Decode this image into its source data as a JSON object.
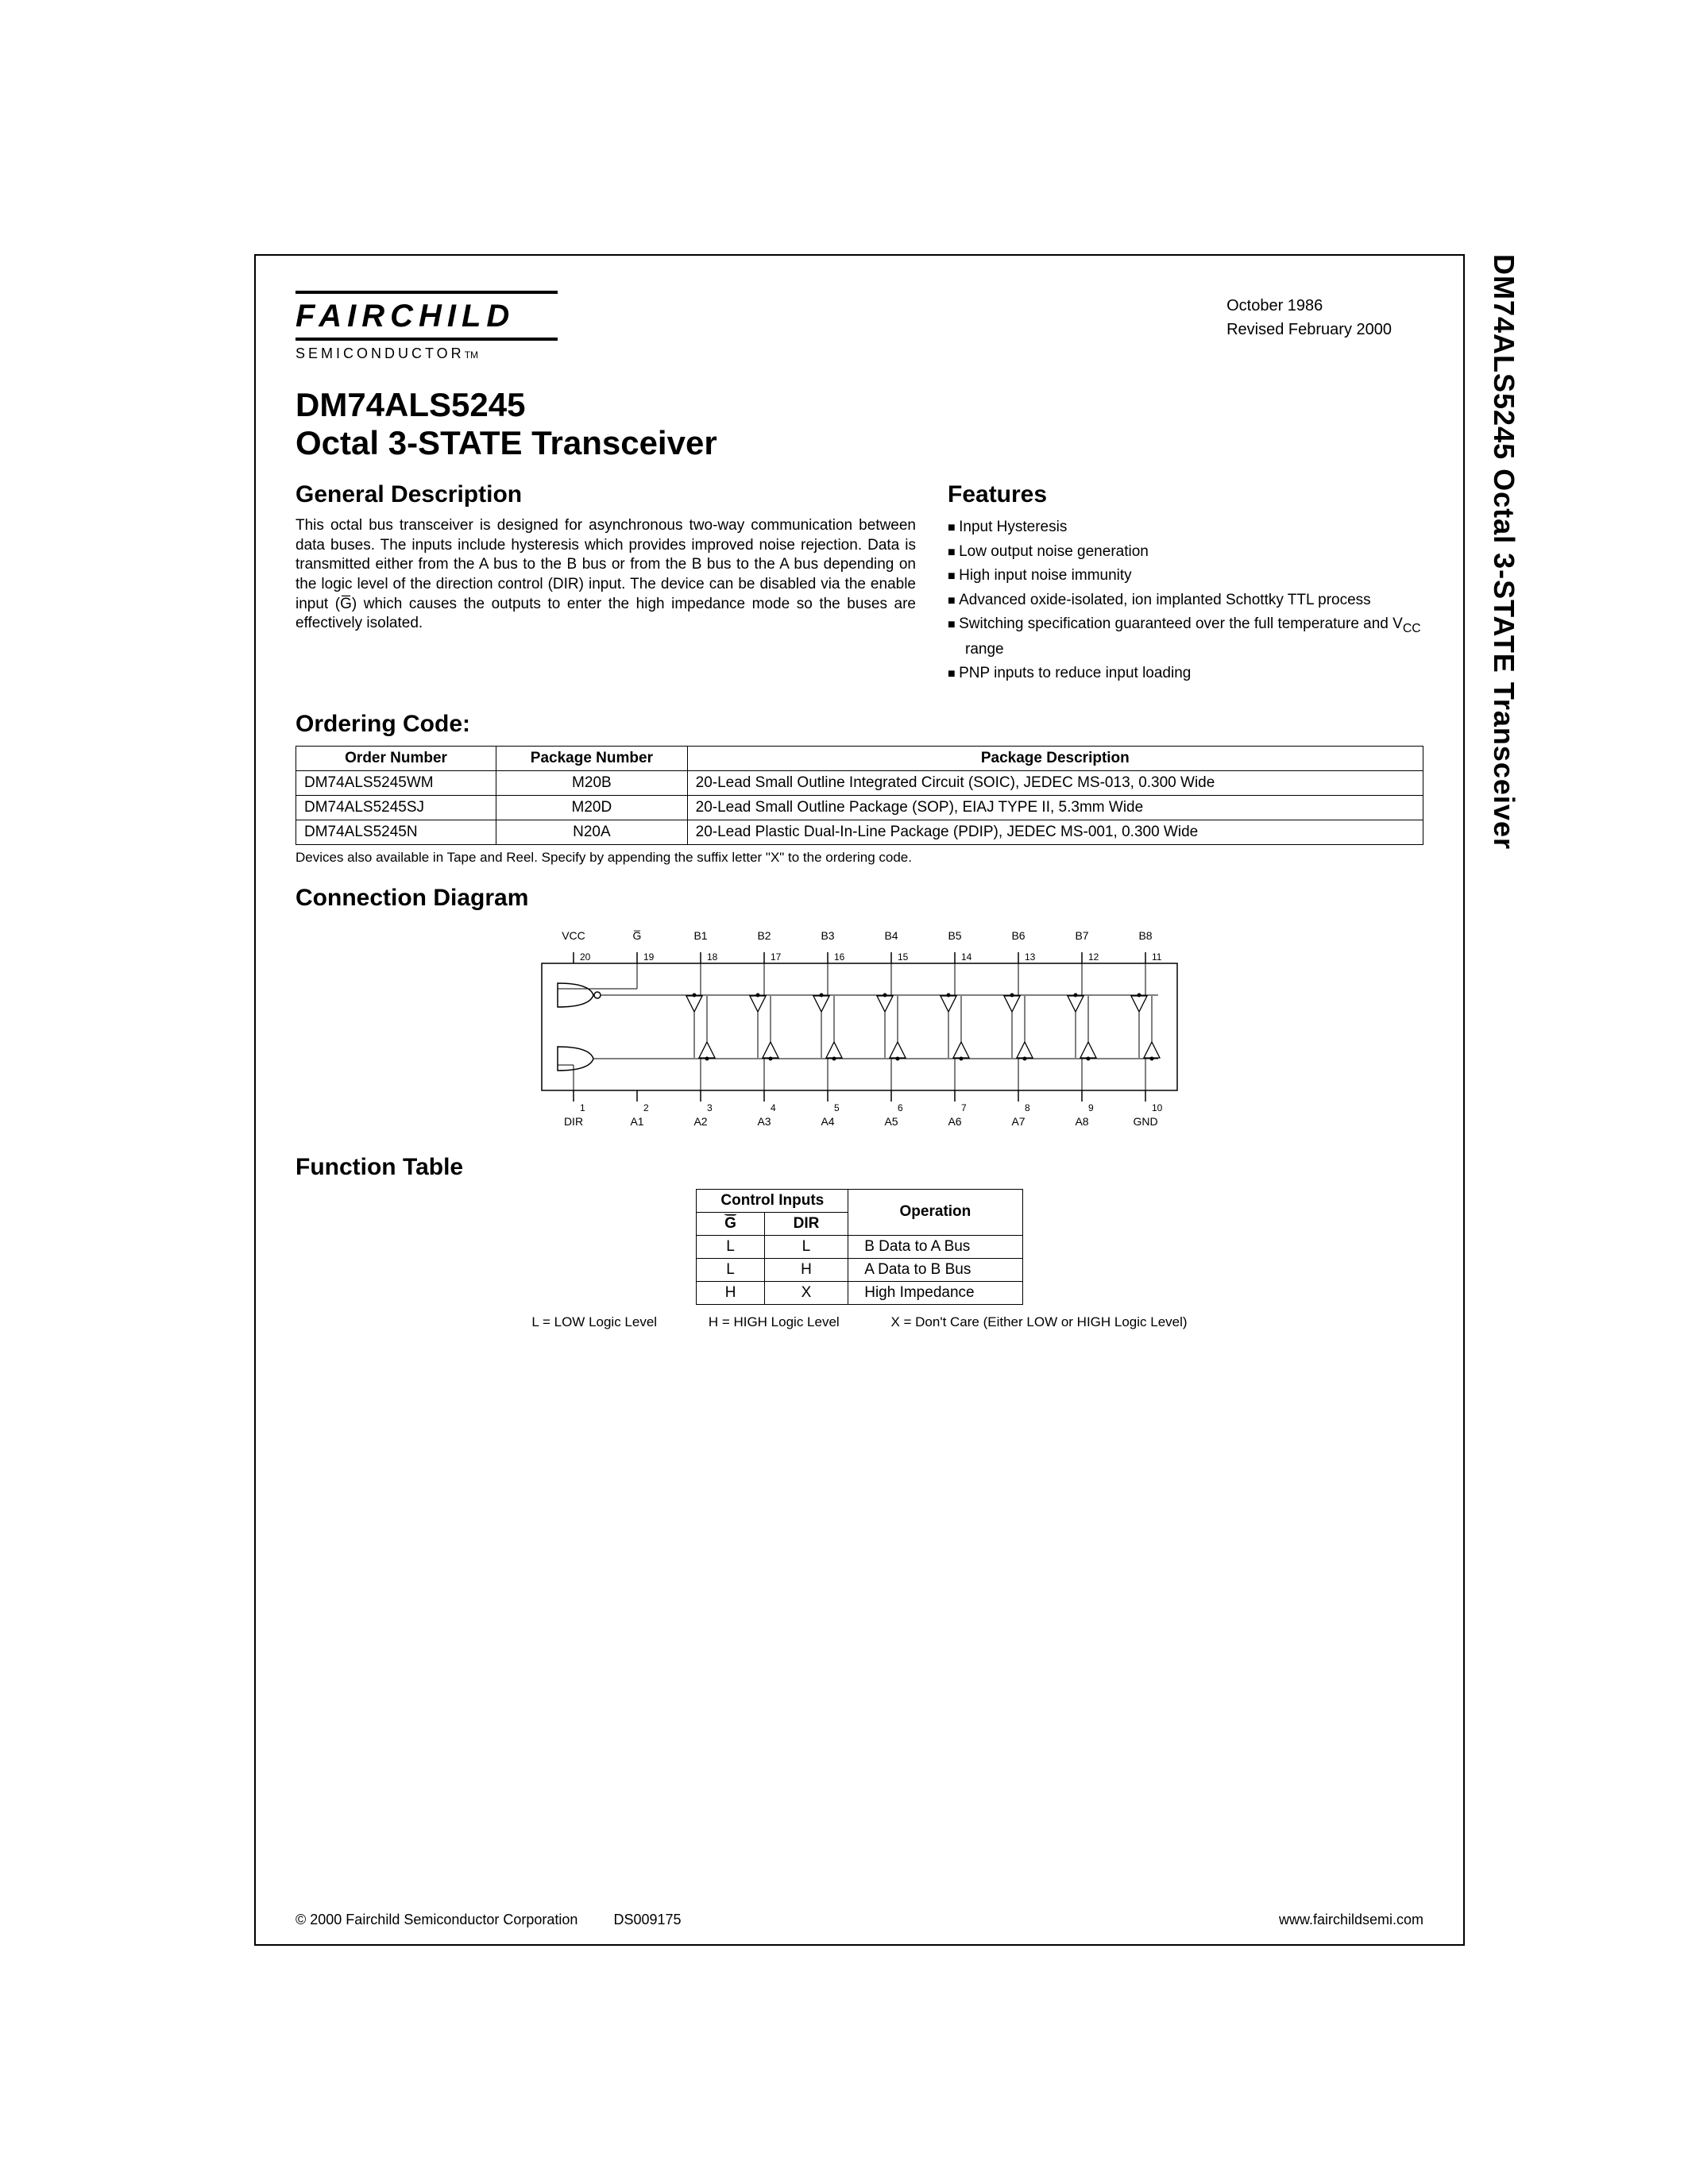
{
  "side_title": "DM74ALS5245 Octal 3-STATE Transceiver",
  "logo": {
    "name": "FAIRCHILD",
    "sub": "SEMICONDUCTOR",
    "tm": "TM"
  },
  "dates": {
    "created": "October 1986",
    "revised": "Revised February 2000"
  },
  "title": {
    "part": "DM74ALS5245",
    "desc": "Octal 3-STATE Transceiver"
  },
  "general_description": {
    "heading": "General Description",
    "body": "This octal bus transceiver is designed for asynchronous two-way communication between data buses. The inputs include hysteresis which provides improved noise rejection. Data is transmitted either from the A bus to the B bus or from the B bus to the A bus depending on the logic level of the direction control (DIR) input. The device can be disabled via the enable input (G̅) which causes the outputs to enter the high impedance mode so the buses are effectively isolated."
  },
  "features": {
    "heading": "Features",
    "items": [
      "Input Hysteresis",
      "Low output noise generation",
      "High input noise immunity",
      "Advanced oxide-isolated, ion implanted Schottky TTL process",
      "Switching specification guaranteed over the full temperature and V<sub>CC</sub> range",
      "PNP inputs to reduce input loading"
    ]
  },
  "ordering": {
    "heading": "Ordering Code:",
    "columns": [
      "Order Number",
      "Package Number",
      "Package Description"
    ],
    "rows": [
      [
        "DM74ALS5245WM",
        "M20B",
        "20-Lead Small Outline Integrated Circuit (SOIC), JEDEC MS-013, 0.300 Wide"
      ],
      [
        "DM74ALS5245SJ",
        "M20D",
        "20-Lead Small Outline Package (SOP), EIAJ TYPE II, 5.3mm Wide"
      ],
      [
        "DM74ALS5245N",
        "N20A",
        "20-Lead Plastic Dual-In-Line Package (PDIP), JEDEC MS-001, 0.300 Wide"
      ]
    ],
    "note": "Devices also available in Tape and Reel. Specify by appending the suffix letter \"X\" to the ordering code."
  },
  "connection": {
    "heading": "Connection Diagram",
    "top_pins": [
      {
        "label": "VCC",
        "num": "20"
      },
      {
        "label": "G̅",
        "num": "19"
      },
      {
        "label": "B1",
        "num": "18"
      },
      {
        "label": "B2",
        "num": "17"
      },
      {
        "label": "B3",
        "num": "16"
      },
      {
        "label": "B4",
        "num": "15"
      },
      {
        "label": "B5",
        "num": "14"
      },
      {
        "label": "B6",
        "num": "13"
      },
      {
        "label": "B7",
        "num": "12"
      },
      {
        "label": "B8",
        "num": "11"
      }
    ],
    "bottom_pins": [
      {
        "label": "DIR",
        "num": "1"
      },
      {
        "label": "A1",
        "num": "2"
      },
      {
        "label": "A2",
        "num": "3"
      },
      {
        "label": "A3",
        "num": "4"
      },
      {
        "label": "A4",
        "num": "5"
      },
      {
        "label": "A5",
        "num": "6"
      },
      {
        "label": "A6",
        "num": "7"
      },
      {
        "label": "A7",
        "num": "8"
      },
      {
        "label": "A8",
        "num": "9"
      },
      {
        "label": "GND",
        "num": "10"
      }
    ]
  },
  "function_table": {
    "heading": "Function Table",
    "header_top": "Control Inputs",
    "header_op": "Operation",
    "sub_g": "G̅",
    "sub_dir": "DIR",
    "rows": [
      [
        "L",
        "L",
        "B Data to A Bus"
      ],
      [
        "L",
        "H",
        "A Data to B Bus"
      ],
      [
        "H",
        "X",
        "High Impedance"
      ]
    ],
    "legend_l": "L = LOW Logic Level",
    "legend_h": "H = HIGH Logic Level",
    "legend_x": "X = Don't Care (Either LOW or HIGH Logic Level)"
  },
  "footer": {
    "copyright": "© 2000 Fairchild Semiconductor Corporation",
    "ds": "DS009175",
    "url": "www.fairchildsemi.com"
  }
}
